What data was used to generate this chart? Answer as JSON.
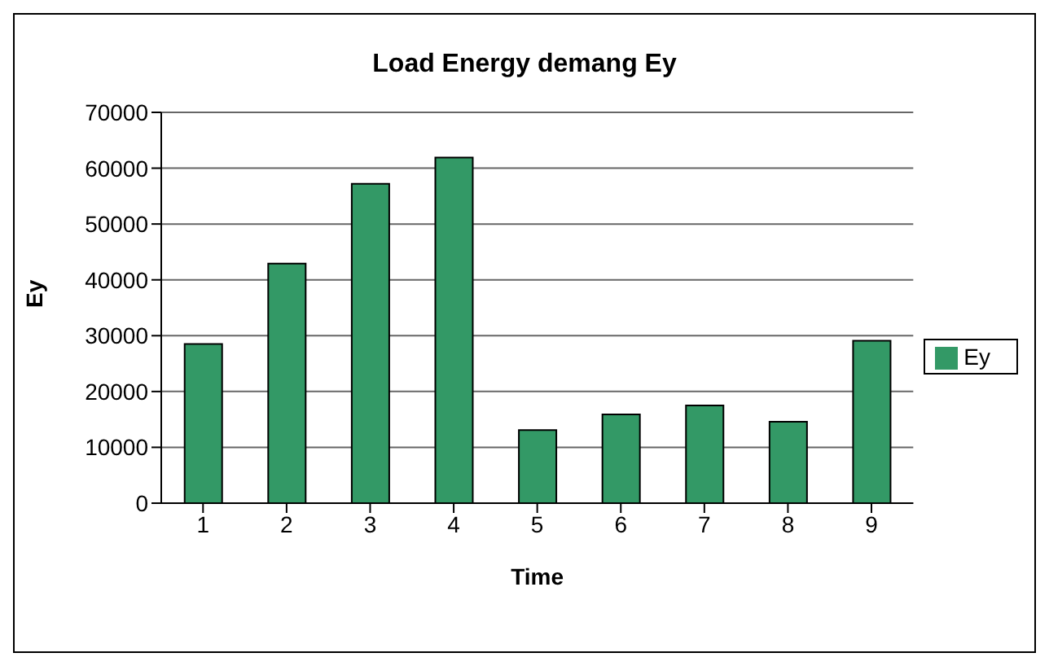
{
  "chart_data": {
    "type": "bar",
    "title": "Load Energy demang Ey",
    "xlabel": "Time",
    "ylabel": "Ey",
    "categories": [
      "1",
      "2",
      "3",
      "4",
      "5",
      "6",
      "7",
      "8",
      "9"
    ],
    "series": [
      {
        "name": "Ey",
        "color": "#339966",
        "values": [
          28500,
          42900,
          57200,
          61900,
          13100,
          15900,
          17500,
          14600,
          29100
        ]
      }
    ],
    "ylim": [
      0,
      70000
    ],
    "yticks": [
      0,
      10000,
      20000,
      30000,
      40000,
      50000,
      60000,
      70000
    ],
    "grid": "y",
    "legend": "right"
  }
}
